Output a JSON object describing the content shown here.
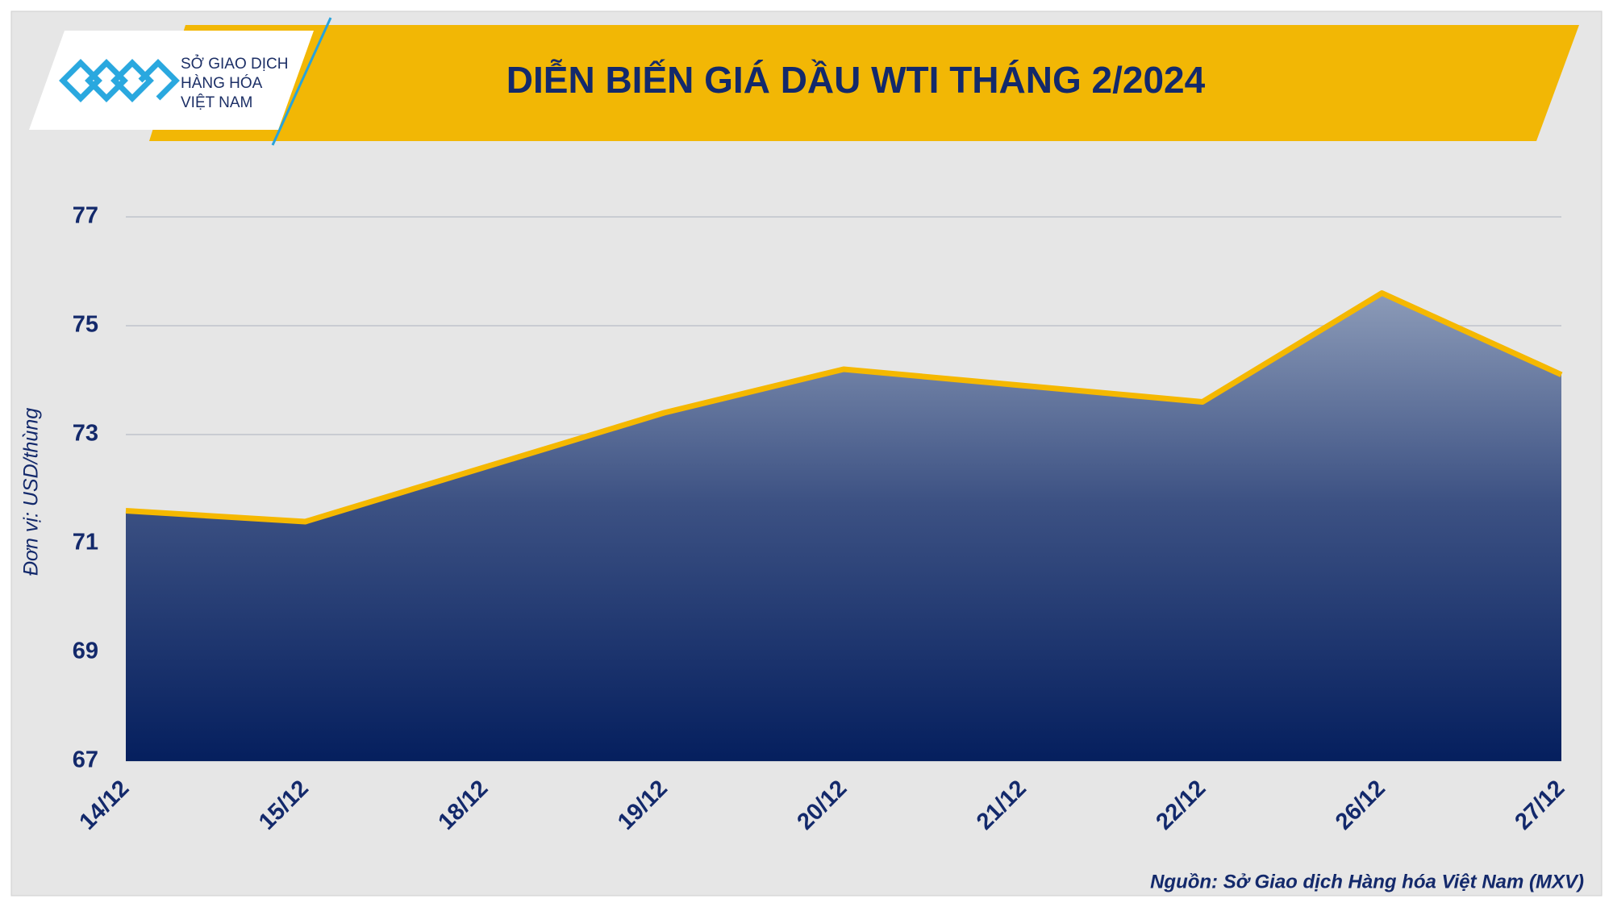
{
  "logo": {
    "lines": [
      "SỞ GIAO DỊCH",
      "HÀNG HÓA",
      "VIỆT NAM"
    ]
  },
  "chart_data": {
    "type": "area",
    "title": "DIỄN BIẾN GIÁ DẦU WTI THÁNG 2/2024",
    "y_label": "Đơn vị: USD/thùng",
    "source": "Nguồn: Sở Giao dịch Hàng hóa Việt Nam (MXV)",
    "categories": [
      "14/12",
      "15/12",
      "18/12",
      "19/12",
      "20/12",
      "21/12",
      "22/12",
      "26/12",
      "27/12"
    ],
    "values": [
      71.6,
      71.4,
      72.4,
      73.4,
      74.2,
      73.9,
      73.6,
      75.6,
      74.1
    ],
    "color": "#f5b800",
    "ylim": [
      67,
      77
    ],
    "yticks": [
      67,
      69,
      71,
      73,
      75,
      77
    ],
    "grid": true
  }
}
